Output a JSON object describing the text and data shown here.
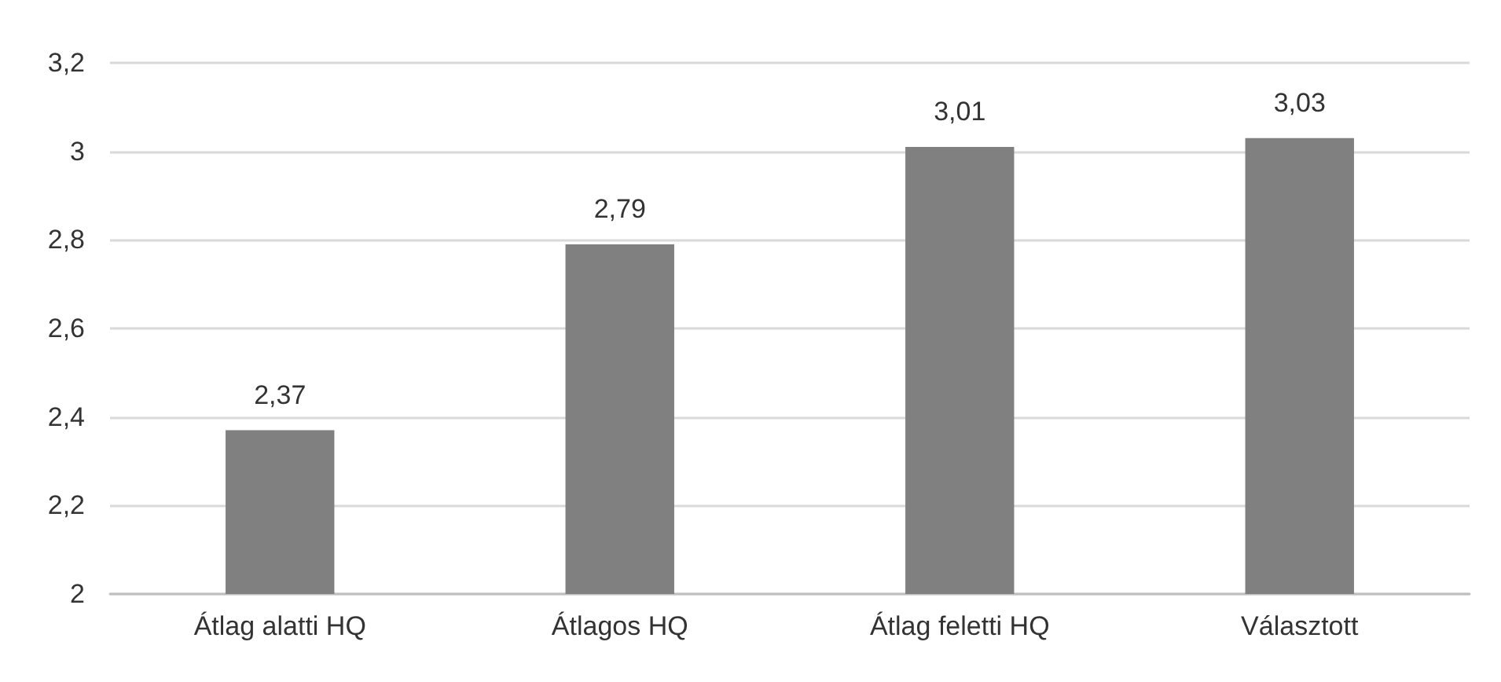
{
  "chart_data": {
    "type": "bar",
    "categories": [
      "Átlag alatti HQ",
      "Átlagos HQ",
      "Átlag feletti HQ",
      "Választott"
    ],
    "values": [
      2.37,
      2.79,
      3.01,
      3.03
    ],
    "value_labels": [
      "2,37",
      "2,79",
      "3,01",
      "3,03"
    ],
    "color": "#808080",
    "ylim": [
      2,
      3.2
    ],
    "yticks": [
      2,
      {
        "value": 2.2,
        "label": "2,2"
      },
      {
        "value": 2.4,
        "label": "2,4"
      },
      {
        "value": 2.6,
        "label": "2,6"
      },
      {
        "value": 2.8,
        "label": "2,8"
      },
      3,
      {
        "value": 3.2,
        "label": "3,2"
      }
    ],
    "grid": "y"
  }
}
